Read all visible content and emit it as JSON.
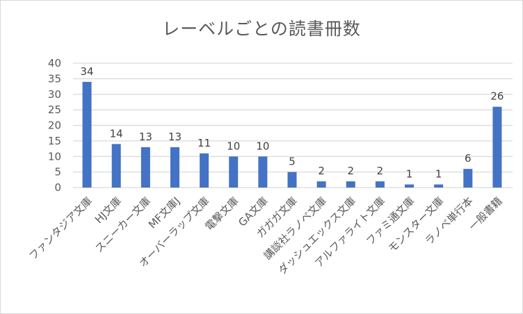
{
  "chart_data": {
    "type": "bar",
    "title": "レーベルごとの読書冊数",
    "xlabel": "",
    "ylabel": "",
    "ylim": [
      0,
      40
    ],
    "yticks": [
      0,
      5,
      10,
      15,
      20,
      25,
      30,
      35,
      40
    ],
    "grid": true,
    "legend": null,
    "data_labels": true,
    "bar_color": "#4472C4",
    "categories": [
      "ファンタジア文庫",
      "HJ文庫",
      "スニーカー文庫",
      "MF文庫J",
      "オーバーラップ文庫",
      "電撃文庫",
      "GA文庫",
      "ガガガ文庫",
      "講談社ラノベ文庫",
      "ダッシュエックス文庫",
      "アルファライト文庫",
      "ファミ通文庫",
      "モンスター文庫",
      "ラノベ単行本",
      "一般書籍"
    ],
    "values": [
      34,
      14,
      13,
      13,
      11,
      10,
      10,
      5,
      2,
      2,
      2,
      1,
      1,
      6,
      26
    ]
  },
  "colors": {
    "bar": "#4472C4",
    "grid": "#d9d9d9",
    "text": "#595959",
    "label": "#404040"
  }
}
